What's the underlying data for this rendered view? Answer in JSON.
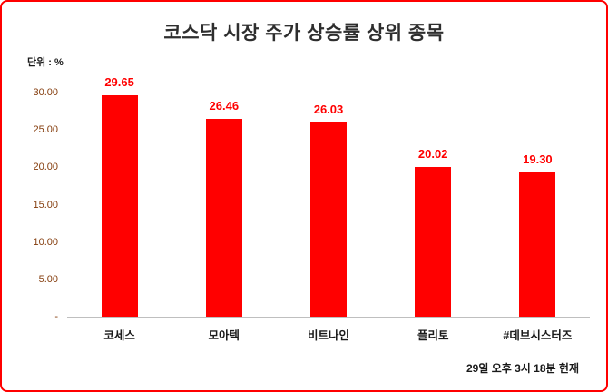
{
  "page": {
    "background": "#ffffff",
    "border_color": "#ff0000"
  },
  "chart_data": {
    "type": "bar",
    "title": "코스닥 시장 주가 상승률 상위 종목",
    "unit_label": "단위 : %",
    "categories": [
      "코세스",
      "모아텍",
      "비트나인",
      "플리토",
      "#데브시스터즈"
    ],
    "values": [
      29.65,
      26.46,
      26.03,
      20.02,
      19.3
    ],
    "value_labels": [
      "29.65",
      "26.46",
      "26.03",
      "20.02",
      "19.30"
    ],
    "xlabel": "",
    "ylabel": "",
    "ylim": [
      0,
      30
    ],
    "yticks": [
      {
        "value": 30,
        "label": "30.00"
      },
      {
        "value": 25,
        "label": "25.00"
      },
      {
        "value": 20,
        "label": "20.00"
      },
      {
        "value": 15,
        "label": "15.00"
      },
      {
        "value": 10,
        "label": "10.00"
      },
      {
        "value": 5,
        "label": "5.00"
      },
      {
        "value": 0,
        "label": "-"
      }
    ],
    "grid": false,
    "legend_position": "none",
    "bar_color": "#ff0000",
    "value_label_color": "#ff0000",
    "tick_label_color": "#843c0c",
    "footnote": "29일 오후 3시 18분 현재"
  }
}
